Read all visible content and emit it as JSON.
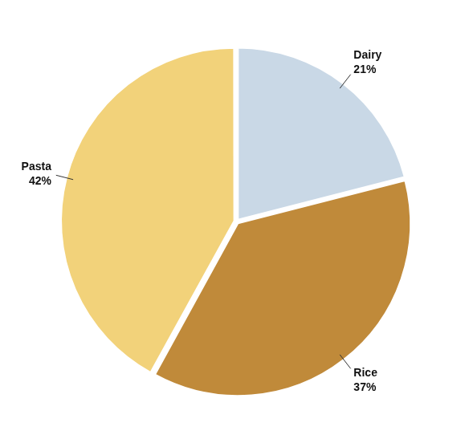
{
  "chart_data": {
    "type": "pie",
    "categories": [
      "Dairy",
      "Rice",
      "Pasta"
    ],
    "values": [
      21,
      37,
      42
    ],
    "value_labels": [
      "21%",
      "37%",
      "42%"
    ],
    "colors": [
      "#c9d8e6",
      "#c08a3a",
      "#f2d27a"
    ],
    "data_labels": true
  }
}
